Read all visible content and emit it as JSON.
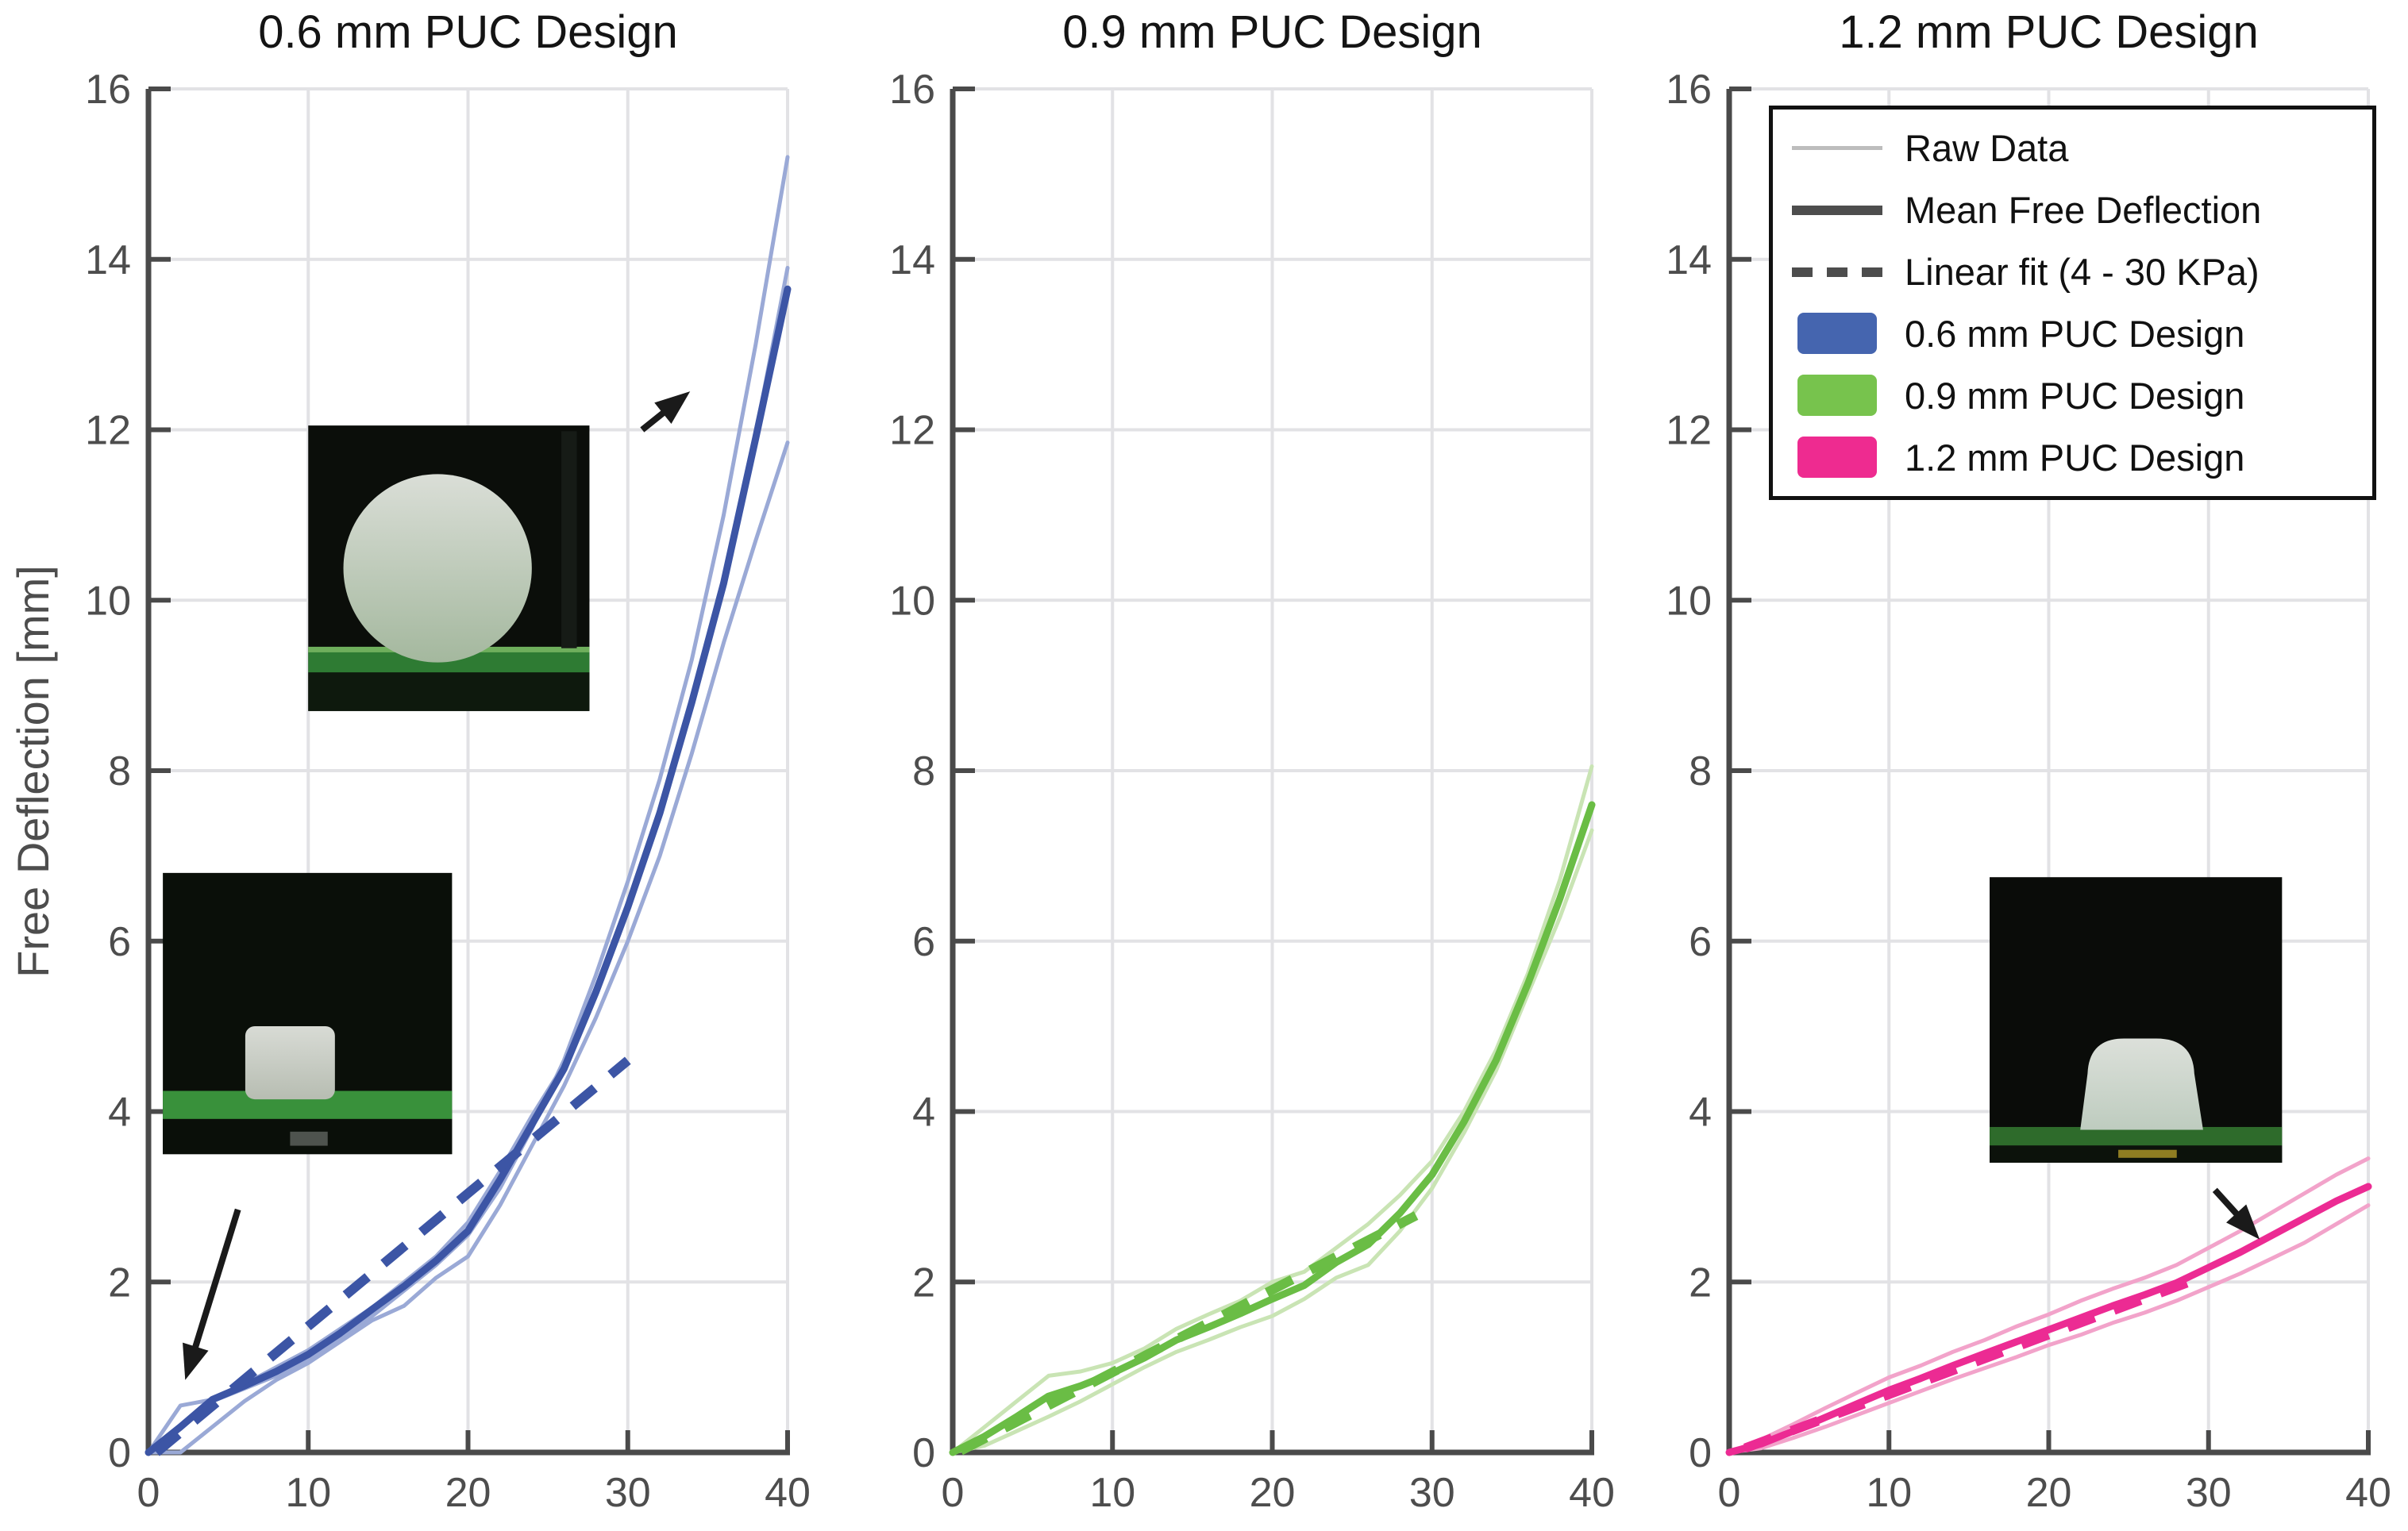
{
  "ylabel": "Free Deflection [mm]",
  "axes": {
    "xlim": [
      0,
      40
    ],
    "ylim": [
      0,
      16
    ],
    "xticks": [
      0,
      10,
      20,
      30,
      40
    ],
    "yticks": [
      0,
      2,
      4,
      6,
      8,
      10,
      12,
      14,
      16
    ],
    "grid": true,
    "grid_color": "#E2E2E5",
    "axis_color": "#4A4A4A",
    "tick_label_color": "#4D4D4D"
  },
  "legend": {
    "items": [
      {
        "label": "Raw Data",
        "swatch": "line",
        "color": "#BDBDBD",
        "thickness": 5
      },
      {
        "label": "Mean Free Deflection",
        "swatch": "line",
        "color": "#4D4D4D",
        "thickness": 12
      },
      {
        "label": "Linear fit (4 - 30 KPa)",
        "swatch": "dashed-line",
        "color": "#4D4D4D",
        "thickness": 12
      },
      {
        "label": "0.6 mm PUC Design",
        "swatch": "patch",
        "color": "#4565AF"
      },
      {
        "label": "0.9 mm PUC Design",
        "swatch": "patch",
        "color": "#77C34D"
      },
      {
        "label": "1.2 mm PUC Design",
        "swatch": "patch",
        "color": "#EE2B90"
      }
    ]
  },
  "chart_data": [
    {
      "type": "line",
      "title": "0.6 mm PUC Design",
      "xlim": [
        0,
        40
      ],
      "ylim": [
        0,
        16
      ],
      "colors": {
        "mean": "#3C55A5",
        "raw": "#9AA9D6",
        "fit": "#3C55A5"
      },
      "x": [
        0,
        2,
        4,
        6,
        8,
        10,
        12,
        14,
        16,
        18,
        20,
        22,
        24,
        26,
        28,
        30,
        32,
        34,
        36,
        38,
        40
      ],
      "series": [
        {
          "name": "Raw Data",
          "role": "raw",
          "values": [
            0,
            0.3,
            0.6,
            0.75,
            0.9,
            1.1,
            1.35,
            1.6,
            1.9,
            2.2,
            2.55,
            3.1,
            3.8,
            4.6,
            5.6,
            6.7,
            7.9,
            9.3,
            11.0,
            13.0,
            15.2
          ]
        },
        {
          "name": "Raw Data",
          "role": "raw",
          "values": [
            0,
            0.55,
            0.62,
            0.8,
            1.0,
            1.2,
            1.45,
            1.7,
            2.0,
            2.3,
            2.7,
            3.3,
            3.95,
            4.55,
            5.45,
            6.45,
            7.55,
            8.85,
            10.25,
            11.95,
            13.9
          ]
        },
        {
          "name": "Raw Data",
          "role": "raw",
          "values": [
            0,
            0.0,
            0.3,
            0.6,
            0.85,
            1.05,
            1.3,
            1.55,
            1.72,
            2.05,
            2.3,
            2.9,
            3.6,
            4.3,
            5.1,
            6.0,
            7.0,
            8.2,
            9.5,
            10.7,
            11.85
          ]
        },
        {
          "name": "Mean Free Deflection",
          "role": "mean",
          "values": [
            0,
            0.3,
            0.62,
            0.78,
            0.95,
            1.15,
            1.4,
            1.68,
            1.95,
            2.25,
            2.6,
            3.2,
            3.85,
            4.5,
            5.4,
            6.4,
            7.5,
            8.8,
            10.2,
            11.9,
            13.65
          ]
        },
        {
          "name": "Linear fit (4 - 30 KPa)",
          "role": "fit",
          "x": [
            0.5,
            30
          ],
          "values": [
            0,
            4.6
          ]
        }
      ]
    },
    {
      "type": "line",
      "title": "0.9 mm PUC Design",
      "xlim": [
        0,
        40
      ],
      "ylim": [
        0,
        16
      ],
      "colors": {
        "mean": "#6ABD45",
        "raw": "#C9E4B4",
        "fit": "#6ABD45"
      },
      "x": [
        0,
        2,
        4,
        6,
        8,
        10,
        12,
        14,
        16,
        18,
        20,
        22,
        24,
        26,
        28,
        30,
        32,
        34,
        36,
        38,
        40
      ],
      "series": [
        {
          "name": "Raw Data",
          "role": "raw",
          "values": [
            0,
            0.3,
            0.6,
            0.9,
            0.95,
            1.05,
            1.22,
            1.45,
            1.62,
            1.78,
            2.0,
            2.12,
            2.4,
            2.68,
            3.02,
            3.42,
            4.0,
            4.72,
            5.62,
            6.72,
            8.05
          ]
        },
        {
          "name": "Raw Data",
          "role": "raw",
          "values": [
            0,
            0.08,
            0.25,
            0.42,
            0.6,
            0.8,
            1.0,
            1.18,
            1.32,
            1.47,
            1.6,
            1.8,
            2.05,
            2.2,
            2.6,
            3.1,
            3.75,
            4.48,
            5.38,
            6.28,
            7.3
          ]
        },
        {
          "name": "Mean Free Deflection",
          "role": "mean",
          "values": [
            0,
            0.19,
            0.42,
            0.66,
            0.78,
            0.93,
            1.11,
            1.32,
            1.47,
            1.63,
            1.8,
            1.96,
            2.23,
            2.44,
            2.81,
            3.26,
            3.88,
            4.6,
            5.5,
            6.5,
            7.6
          ]
        },
        {
          "name": "Linear fit (4 - 30 KPa)",
          "role": "fit",
          "x": [
            0.5,
            29
          ],
          "values": [
            0.02,
            2.78
          ]
        }
      ]
    },
    {
      "type": "line",
      "title": "1.2 mm PUC Design",
      "xlim": [
        0,
        40
      ],
      "ylim": [
        0,
        16
      ],
      "colors": {
        "mean": "#EC2B93",
        "raw": "#F2A3CA",
        "fit": "#EC2B93"
      },
      "x": [
        0,
        2,
        4,
        6,
        8,
        10,
        12,
        14,
        16,
        18,
        20,
        22,
        24,
        26,
        28,
        30,
        32,
        34,
        36,
        38,
        40
      ],
      "series": [
        {
          "name": "Raw Data",
          "role": "raw",
          "values": [
            0,
            0.15,
            0.33,
            0.52,
            0.7,
            0.88,
            1.02,
            1.18,
            1.32,
            1.48,
            1.62,
            1.78,
            1.92,
            2.05,
            2.2,
            2.4,
            2.6,
            2.82,
            3.04,
            3.26,
            3.45
          ]
        },
        {
          "name": "Raw Data",
          "role": "raw",
          "values": [
            0,
            0.05,
            0.17,
            0.3,
            0.44,
            0.58,
            0.72,
            0.86,
            0.99,
            1.12,
            1.26,
            1.38,
            1.52,
            1.64,
            1.78,
            1.94,
            2.1,
            2.28,
            2.46,
            2.68,
            2.9
          ]
        },
        {
          "name": "Mean Free Deflection",
          "role": "mean",
          "values": [
            0,
            0.1,
            0.25,
            0.41,
            0.57,
            0.73,
            0.87,
            1.02,
            1.16,
            1.3,
            1.44,
            1.58,
            1.72,
            1.85,
            1.99,
            2.17,
            2.35,
            2.55,
            2.75,
            2.95,
            3.12
          ]
        },
        {
          "name": "Linear fit (4 - 30 KPa)",
          "role": "fit",
          "x": [
            1,
            29.5
          ],
          "values": [
            0.05,
            2.05
          ]
        }
      ]
    }
  ],
  "annotations": [
    {
      "panel": 0,
      "type": "photo",
      "name": "inflated-puc-photo",
      "style": "ball",
      "x": [
        10.0,
        27.6
      ],
      "y": [
        8.7,
        12.05
      ],
      "photo_bg": "#0B0E0A",
      "platform_color": "#2E7B33",
      "object_color": "#CCD1C9"
    },
    {
      "panel": 0,
      "type": "photo",
      "name": "deflated-puc-photo",
      "style": "cube",
      "x": [
        0.9,
        19.0
      ],
      "y": [
        3.5,
        6.8
      ],
      "photo_bg": "#0A0F09",
      "platform_color": "#39913B",
      "object_color": "#CFD3CB"
    },
    {
      "panel": 0,
      "type": "arrow",
      "name": "deflated-state-arrow",
      "from": [
        5.6,
        2.85
      ],
      "to": [
        2.3,
        0.85
      ],
      "color": "#1A1A1A"
    },
    {
      "panel": 0,
      "type": "arrow",
      "name": "inflated-state-arrow",
      "from": [
        30.9,
        12.0
      ],
      "to": [
        33.9,
        12.45
      ],
      "color": "#1A1A1A"
    },
    {
      "panel": 2,
      "type": "photo",
      "name": "puc-dome-photo",
      "style": "dome",
      "x": [
        16.3,
        34.6
      ],
      "y": [
        3.4,
        6.75
      ],
      "photo_bg": "#0A0C09",
      "platform_color": "#2E6B2B",
      "object_color": "#D3D8D2"
    },
    {
      "panel": 2,
      "type": "arrow",
      "name": "dome-state-arrow",
      "from": [
        30.4,
        3.08
      ],
      "to": [
        33.2,
        2.5
      ],
      "color": "#1A1A1A"
    }
  ]
}
